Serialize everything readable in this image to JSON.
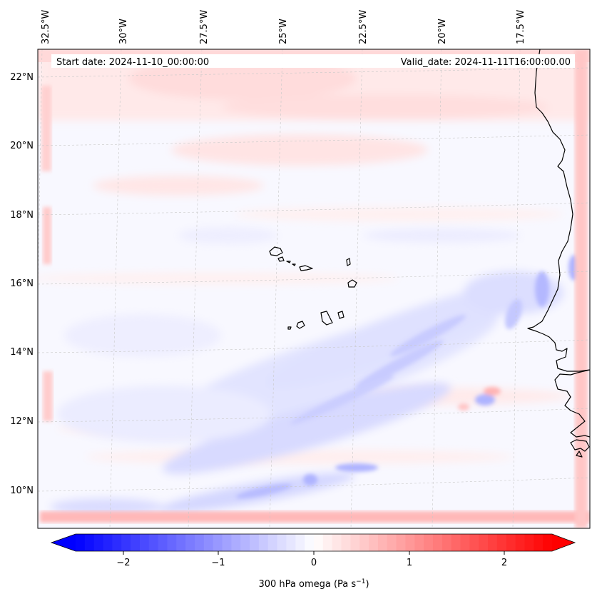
{
  "header": {
    "start_date": "Start date: 2024-11-10_00:00:00",
    "valid_date": "Valid_date: 2024-11-11T16:00:00.00"
  },
  "map": {
    "lon_ticks": [
      "32.5°W",
      "30°W",
      "27.5°W",
      "25°W",
      "22.5°W",
      "20°W",
      "17.5°W"
    ],
    "lat_ticks": [
      "22°N",
      "20°N",
      "18°N",
      "16°N",
      "14°N",
      "12°N",
      "10°N"
    ],
    "projection": "Lambert conformal (slightly tilted graticule)",
    "gridlines": true,
    "field": "300 hPa omega",
    "colormap": "bwr"
  },
  "colorbar": {
    "label_main": "300 hPa omega (Pa s",
    "label_exp": "−1",
    "label_close": ")",
    "ticks": [
      "−2",
      "−1",
      "0",
      "1",
      "2"
    ],
    "range": [
      -2.6,
      2.6
    ],
    "levels": 52,
    "colors": {
      "min": "#0000ff",
      "mid": "#ffffff",
      "max": "#ff0000"
    },
    "extend": "both"
  }
}
